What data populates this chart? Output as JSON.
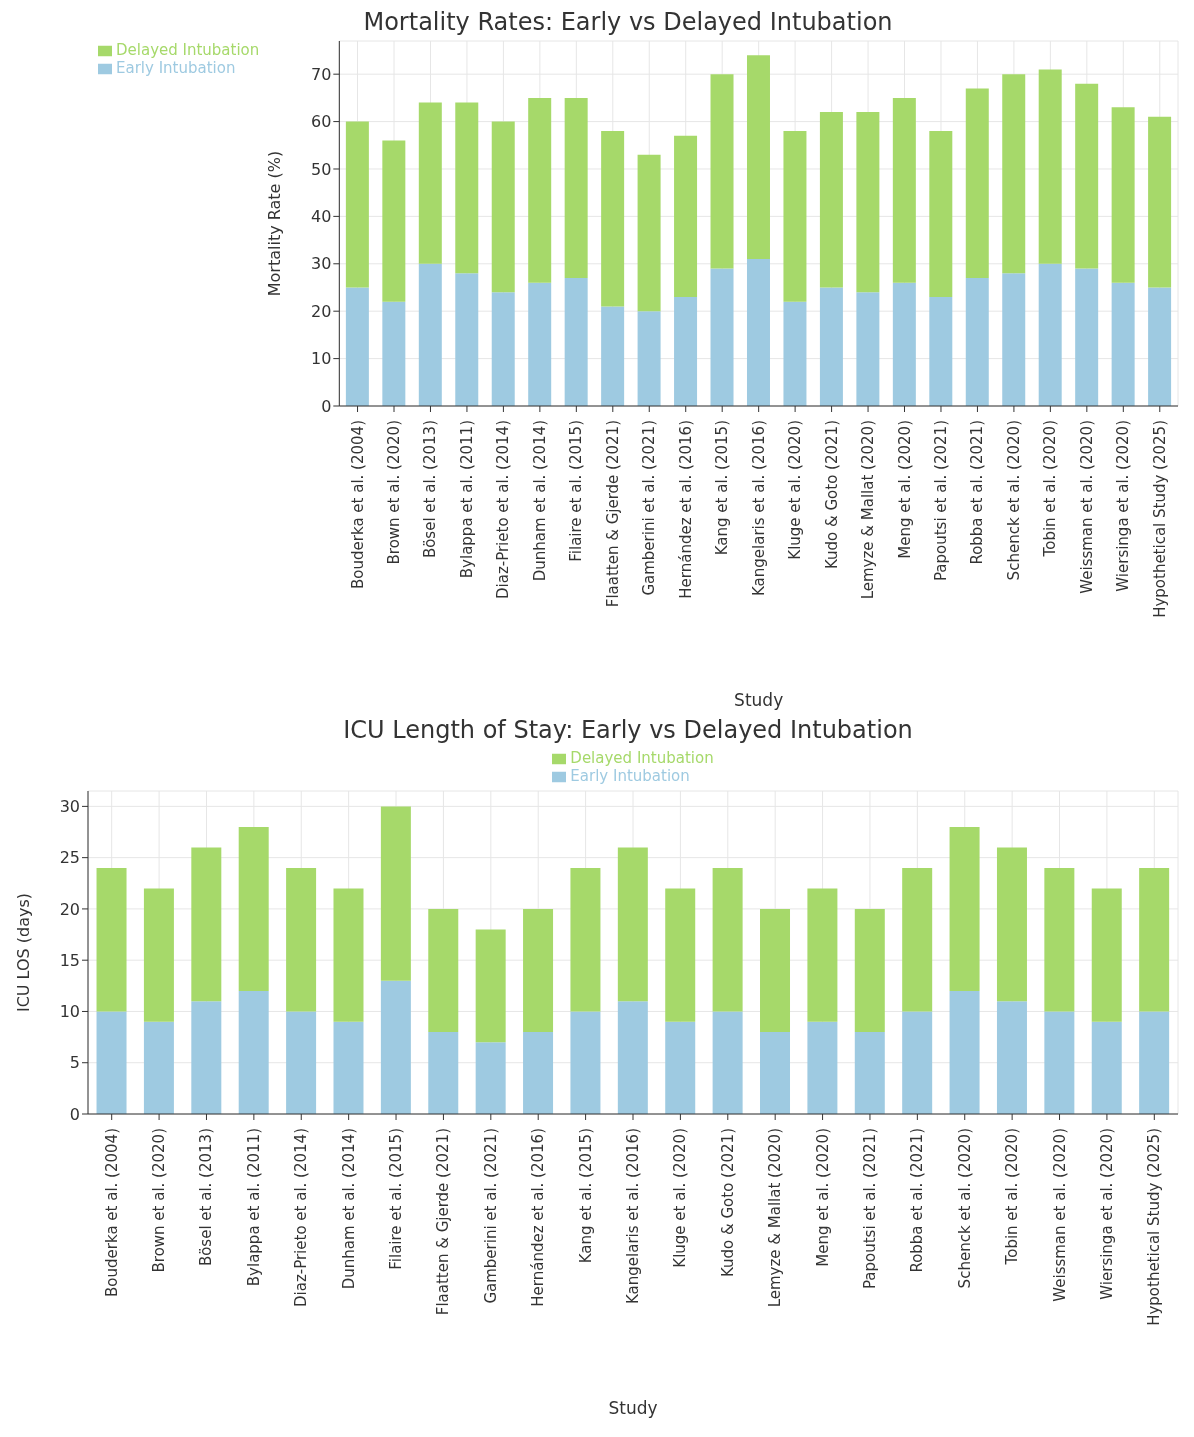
{
  "chart_data": [
    {
      "type": "bar",
      "title": "Mortality Rates: Early vs Delayed Intubation",
      "xlabel": "Study",
      "ylabel": "Mortality Rate (%)",
      "stacked": true,
      "grid": true,
      "legend": "top left",
      "categories": [
        "Bouderka et al. (2004)",
        "Brown et al. (2020)",
        "Bösel et al. (2013)",
        "Bylappa et al. (2011)",
        "Diaz-Prieto et al. (2014)",
        "Dunham et al. (2014)",
        "Filaire et al. (2015)",
        "Flaatten & Gjerde (2021)",
        "Gamberini et al. (2021)",
        "Hernández et al. (2016)",
        "Kang et al. (2015)",
        "Kangelaris et al. (2016)",
        "Kluge et al. (2020)",
        "Kudo & Goto (2021)",
        "Lemyze & Mallat (2020)",
        "Meng et al. (2020)",
        "Papoutsi et al. (2021)",
        "Robba et al. (2021)",
        "Schenck et al. (2020)",
        "Tobin et al. (2020)",
        "Weissman et al. (2020)",
        "Wiersinga et al. (2020)",
        "Hypothetical Study (2025)"
      ],
      "ylim": [
        0,
        77
      ],
      "yticks": [
        0,
        10,
        20,
        30,
        40,
        50,
        60,
        70
      ],
      "series": [
        {
          "name": "Early Intubation",
          "color": "#9ecae1",
          "values": [
            25,
            22,
            30,
            28,
            24,
            26,
            27,
            21,
            20,
            23,
            29,
            31,
            22,
            25,
            24,
            26,
            23,
            27,
            28,
            30,
            29,
            26,
            25
          ]
        },
        {
          "name": "Delayed Intubation",
          "color": "#a6d96a",
          "values": [
            35,
            34,
            34,
            36,
            36,
            39,
            38,
            37,
            33,
            34,
            41,
            43,
            36,
            37,
            38,
            39,
            35,
            40,
            42,
            41,
            39,
            37,
            36
          ]
        }
      ]
    },
    {
      "type": "bar",
      "title": "ICU Length of Stay: Early vs Delayed Intubation",
      "xlabel": "Study",
      "ylabel": "ICU LOS (days)",
      "stacked": true,
      "grid": true,
      "legend": "top",
      "categories": [
        "Bouderka et al. (2004)",
        "Brown et al. (2020)",
        "Bösel et al. (2013)",
        "Bylappa et al. (2011)",
        "Diaz-Prieto et al. (2014)",
        "Dunham et al. (2014)",
        "Filaire et al. (2015)",
        "Flaatten & Gjerde (2021)",
        "Gamberini et al. (2021)",
        "Hernández et al. (2016)",
        "Kang et al. (2015)",
        "Kangelaris et al. (2016)",
        "Kluge et al. (2020)",
        "Kudo & Goto (2021)",
        "Lemyze & Mallat (2020)",
        "Meng et al. (2020)",
        "Papoutsi et al. (2021)",
        "Robba et al. (2021)",
        "Schenck et al. (2020)",
        "Tobin et al. (2020)",
        "Weissman et al. (2020)",
        "Wiersinga et al. (2020)",
        "Hypothetical Study (2025)"
      ],
      "ylim": [
        0,
        31.5
      ],
      "yticks": [
        0,
        5,
        10,
        15,
        20,
        25,
        30
      ],
      "series": [
        {
          "name": "Early Intubation",
          "color": "#9ecae1",
          "values": [
            10,
            9,
            11,
            12,
            10,
            9,
            13,
            8,
            7,
            8,
            10,
            11,
            9,
            10,
            8,
            9,
            8,
            10,
            12,
            11,
            10,
            9,
            10
          ]
        },
        {
          "name": "Delayed Intubation",
          "color": "#a6d96a",
          "values": [
            14,
            13,
            15,
            16,
            14,
            13,
            17,
            12,
            11,
            12,
            14,
            15,
            13,
            14,
            12,
            13,
            12,
            14,
            16,
            15,
            14,
            13,
            14
          ]
        }
      ]
    }
  ]
}
